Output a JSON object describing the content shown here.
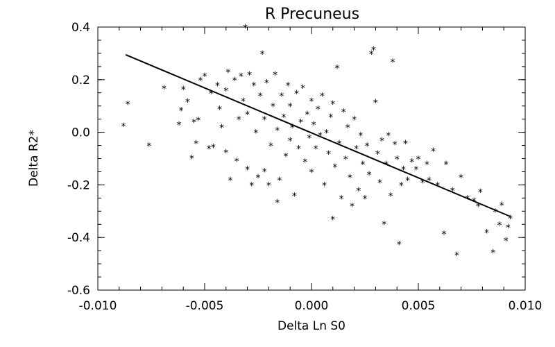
{
  "chart_data": {
    "type": "scatter",
    "title": "R Precuneus",
    "xlabel": "Delta Ln S0",
    "ylabel": "Delta R2*",
    "xlim": [
      -0.01,
      0.01
    ],
    "ylim": [
      -0.6,
      0.4
    ],
    "xticks": [
      "-0.010",
      "-0.005",
      "0.000",
      "0.005",
      "0.010"
    ],
    "xtick_values": [
      -0.01,
      -0.005,
      0.0,
      0.005,
      0.01
    ],
    "yticks": [
      "-0.6",
      "-0.4",
      "-0.2",
      "0.0",
      "0.2",
      "0.4"
    ],
    "ytick_values": [
      -0.6,
      -0.4,
      -0.2,
      0.0,
      0.2,
      0.4
    ],
    "marker": "*",
    "grid": false,
    "fit_line": {
      "x": [
        -0.0087,
        0.0093
      ],
      "y": [
        0.295,
        -0.32
      ]
    },
    "points": [
      [
        -0.0088,
        0.025
      ],
      [
        -0.0086,
        0.108
      ],
      [
        -0.0076,
        -0.05
      ],
      [
        -0.0069,
        0.168
      ],
      [
        -0.0062,
        0.03
      ],
      [
        -0.0061,
        0.085
      ],
      [
        -0.006,
        0.165
      ],
      [
        -0.0058,
        0.118
      ],
      [
        -0.0056,
        -0.098
      ],
      [
        -0.0055,
        0.04
      ],
      [
        -0.0054,
        -0.04
      ],
      [
        -0.0053,
        0.048
      ],
      [
        -0.0052,
        0.2
      ],
      [
        -0.005,
        0.215
      ],
      [
        -0.0048,
        -0.06
      ],
      [
        -0.0047,
        0.15
      ],
      [
        -0.0046,
        -0.055
      ],
      [
        -0.0044,
        0.18
      ],
      [
        -0.0043,
        0.09
      ],
      [
        -0.0042,
        0.02
      ],
      [
        -0.004,
        0.16
      ],
      [
        -0.004,
        -0.075
      ],
      [
        -0.0039,
        0.23
      ],
      [
        -0.0038,
        -0.18
      ],
      [
        -0.0036,
        0.2
      ],
      [
        -0.0035,
        -0.108
      ],
      [
        -0.0034,
        0.05
      ],
      [
        -0.0033,
        0.215
      ],
      [
        -0.0032,
        0.12
      ],
      [
        -0.0031,
        0.4
      ],
      [
        -0.003,
        -0.14
      ],
      [
        -0.003,
        0.07
      ],
      [
        -0.0029,
        0.22
      ],
      [
        -0.0028,
        -0.2
      ],
      [
        -0.0027,
        0.18
      ],
      [
        -0.0026,
        0.0
      ],
      [
        -0.0025,
        -0.17
      ],
      [
        -0.0024,
        0.14
      ],
      [
        -0.0023,
        0.3
      ],
      [
        -0.0022,
        -0.148
      ],
      [
        -0.0022,
        0.05
      ],
      [
        -0.0021,
        0.19
      ],
      [
        -0.002,
        -0.2
      ],
      [
        -0.0019,
        -0.05
      ],
      [
        -0.0018,
        0.1
      ],
      [
        -0.0017,
        0.22
      ],
      [
        -0.0016,
        -0.265
      ],
      [
        -0.0016,
        0.01
      ],
      [
        -0.0015,
        -0.18
      ],
      [
        -0.0014,
        0.14
      ],
      [
        -0.0013,
        0.06
      ],
      [
        -0.0012,
        -0.09
      ],
      [
        -0.0011,
        0.18
      ],
      [
        -0.001,
        -0.03
      ],
      [
        -0.001,
        0.1
      ],
      [
        -0.0009,
        0.02
      ],
      [
        -0.0008,
        -0.24
      ],
      [
        -0.0007,
        0.15
      ],
      [
        -0.0006,
        -0.06
      ],
      [
        -0.0005,
        0.04
      ],
      [
        -0.0004,
        0.17
      ],
      [
        -0.0003,
        -0.11
      ],
      [
        -0.0002,
        0.07
      ],
      [
        -0.0001,
        -0.02
      ],
      [
        0.0,
        0.12
      ],
      [
        0.0,
        -0.15
      ],
      [
        0.0001,
        0.03
      ],
      [
        0.0002,
        -0.06
      ],
      [
        0.0003,
        0.09
      ],
      [
        0.0004,
        -0.01
      ],
      [
        0.0005,
        0.14
      ],
      [
        0.0006,
        -0.2
      ],
      [
        0.0007,
        0.0
      ],
      [
        0.0008,
        -0.08
      ],
      [
        0.0009,
        0.06
      ],
      [
        0.001,
        -0.33
      ],
      [
        0.001,
        0.11
      ],
      [
        0.0011,
        -0.13
      ],
      [
        0.0012,
        0.245
      ],
      [
        0.0013,
        -0.04
      ],
      [
        0.0014,
        -0.25
      ],
      [
        0.0015,
        0.08
      ],
      [
        0.0016,
        -0.1
      ],
      [
        0.0017,
        0.02
      ],
      [
        0.0018,
        -0.17
      ],
      [
        0.0019,
        -0.28
      ],
      [
        0.002,
        0.05
      ],
      [
        0.0021,
        -0.06
      ],
      [
        0.0022,
        -0.22
      ],
      [
        0.0023,
        -0.01
      ],
      [
        0.0024,
        -0.12
      ],
      [
        0.0025,
        -0.25
      ],
      [
        0.0026,
        -0.05
      ],
      [
        0.0027,
        -0.16
      ],
      [
        0.0028,
        0.3
      ],
      [
        0.0029,
        0.315
      ],
      [
        0.003,
        0.115
      ],
      [
        0.0031,
        -0.08
      ],
      [
        0.0032,
        -0.19
      ],
      [
        0.0033,
        -0.03
      ],
      [
        0.0034,
        -0.348
      ],
      [
        0.0035,
        -0.12
      ],
      [
        0.0036,
        -0.01
      ],
      [
        0.0037,
        -0.24
      ],
      [
        0.0038,
        0.27
      ],
      [
        0.0039,
        -0.045
      ],
      [
        0.004,
        -0.1
      ],
      [
        0.0041,
        -0.425
      ],
      [
        0.0042,
        -0.2
      ],
      [
        0.0043,
        -0.14
      ],
      [
        0.0044,
        -0.04
      ],
      [
        0.0045,
        -0.18
      ],
      [
        0.0047,
        -0.11
      ],
      [
        0.0049,
        -0.14
      ],
      [
        0.005,
        -0.1
      ],
      [
        0.0052,
        -0.19
      ],
      [
        0.0054,
        -0.12
      ],
      [
        0.0055,
        -0.18
      ],
      [
        0.0057,
        -0.07
      ],
      [
        0.0059,
        -0.2
      ],
      [
        0.0062,
        -0.385
      ],
      [
        0.0063,
        -0.12
      ],
      [
        0.0066,
        -0.22
      ],
      [
        0.0068,
        -0.465
      ],
      [
        0.007,
        -0.17
      ],
      [
        0.0073,
        -0.25
      ],
      [
        0.0076,
        -0.26
      ],
      [
        0.0078,
        -0.28
      ],
      [
        0.0079,
        -0.225
      ],
      [
        0.0082,
        -0.38
      ],
      [
        0.0085,
        -0.455
      ],
      [
        0.0086,
        -0.3
      ],
      [
        0.0088,
        -0.35
      ],
      [
        0.0089,
        -0.275
      ],
      [
        0.0091,
        -0.41
      ],
      [
        0.0092,
        -0.36
      ],
      [
        0.0093,
        -0.325
      ]
    ]
  }
}
